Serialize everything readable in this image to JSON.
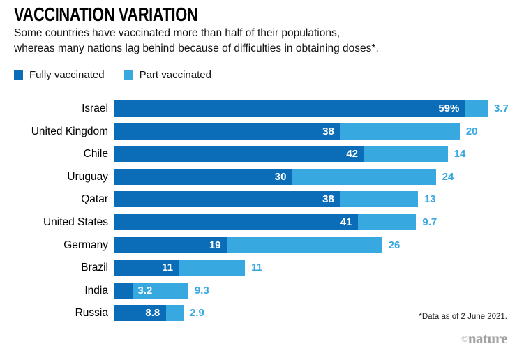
{
  "header": {
    "title": "VACCINATION VARIATION",
    "subtitle_line1": "Some countries have vaccinated more than half of their populations,",
    "subtitle_line2": "whereas many nations lag behind because of difficulties in obtaining doses*."
  },
  "legend": [
    {
      "label": "Fully vaccinated",
      "color": "#0b6db7"
    },
    {
      "label": "Part vaccinated",
      "color": "#38a8e0"
    }
  ],
  "chart_data": {
    "type": "bar",
    "orientation": "horizontal",
    "stacked": true,
    "title": "VACCINATION VARIATION",
    "categories": [
      "Israel",
      "United Kingdom",
      "Chile",
      "Uruguay",
      "Qatar",
      "United States",
      "Germany",
      "Brazil",
      "India",
      "Russia"
    ],
    "series": [
      {
        "name": "Fully vaccinated",
        "color": "#0b6db7",
        "values": [
          59,
          38,
          42,
          30,
          38,
          41,
          19,
          11,
          3.2,
          8.8
        ],
        "labels": [
          "59%",
          "38",
          "42",
          "30",
          "38",
          "41",
          "19",
          "11",
          "3.2",
          "8.8"
        ]
      },
      {
        "name": "Part vaccinated",
        "color": "#38a8e0",
        "values": [
          3.7,
          20,
          14,
          24,
          13,
          9.7,
          26,
          11,
          9.3,
          2.9
        ],
        "labels": [
          "3.7",
          "20",
          "14",
          "24",
          "13",
          "9.7",
          "26",
          "11",
          "9.3",
          "2.9"
        ]
      }
    ],
    "xlim": [
      0,
      62.7
    ],
    "grid": false,
    "legend_position": "top-left"
  },
  "footer": {
    "footnote": "*Data as of 2 June 2021.",
    "credit_symbol": "©",
    "credit_name": "nature"
  }
}
